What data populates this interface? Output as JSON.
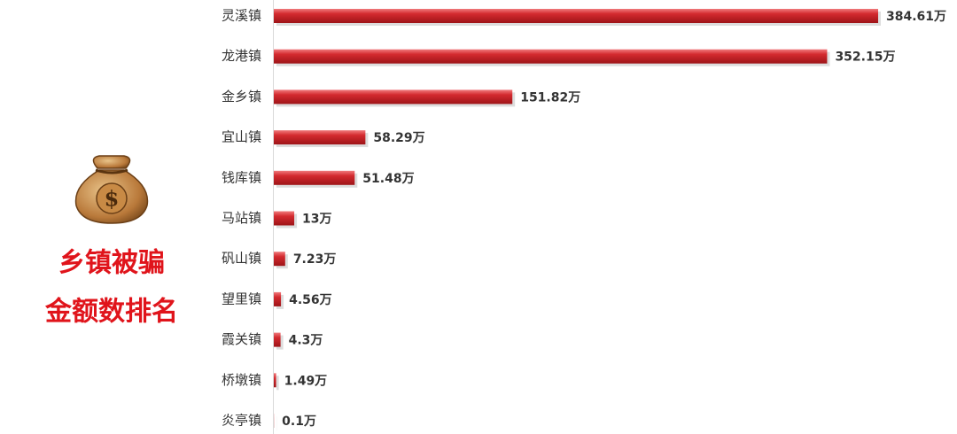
{
  "chart_data": {
    "type": "bar",
    "orientation": "horizontal",
    "title": [
      "乡镇被骗",
      "金额数排名"
    ],
    "categories": [
      "灵溪镇",
      "龙港镇",
      "金乡镇",
      "宜山镇",
      "钱库镇",
      "马站镇",
      "矾山镇",
      "望里镇",
      "霞关镇",
      "桥墩镇",
      "炎亭镇"
    ],
    "values": [
      384.61,
      352.15,
      151.82,
      58.29,
      51.48,
      13,
      7.23,
      4.56,
      4.3,
      1.49,
      0.1
    ],
    "value_labels": [
      "384.61万",
      "352.15万",
      "151.82万",
      "58.29万",
      "51.48万",
      "13万",
      "7.23万",
      "4.56万",
      "4.3万",
      "1.49万",
      "0.1万"
    ],
    "color": "#d42a2f"
  }
}
